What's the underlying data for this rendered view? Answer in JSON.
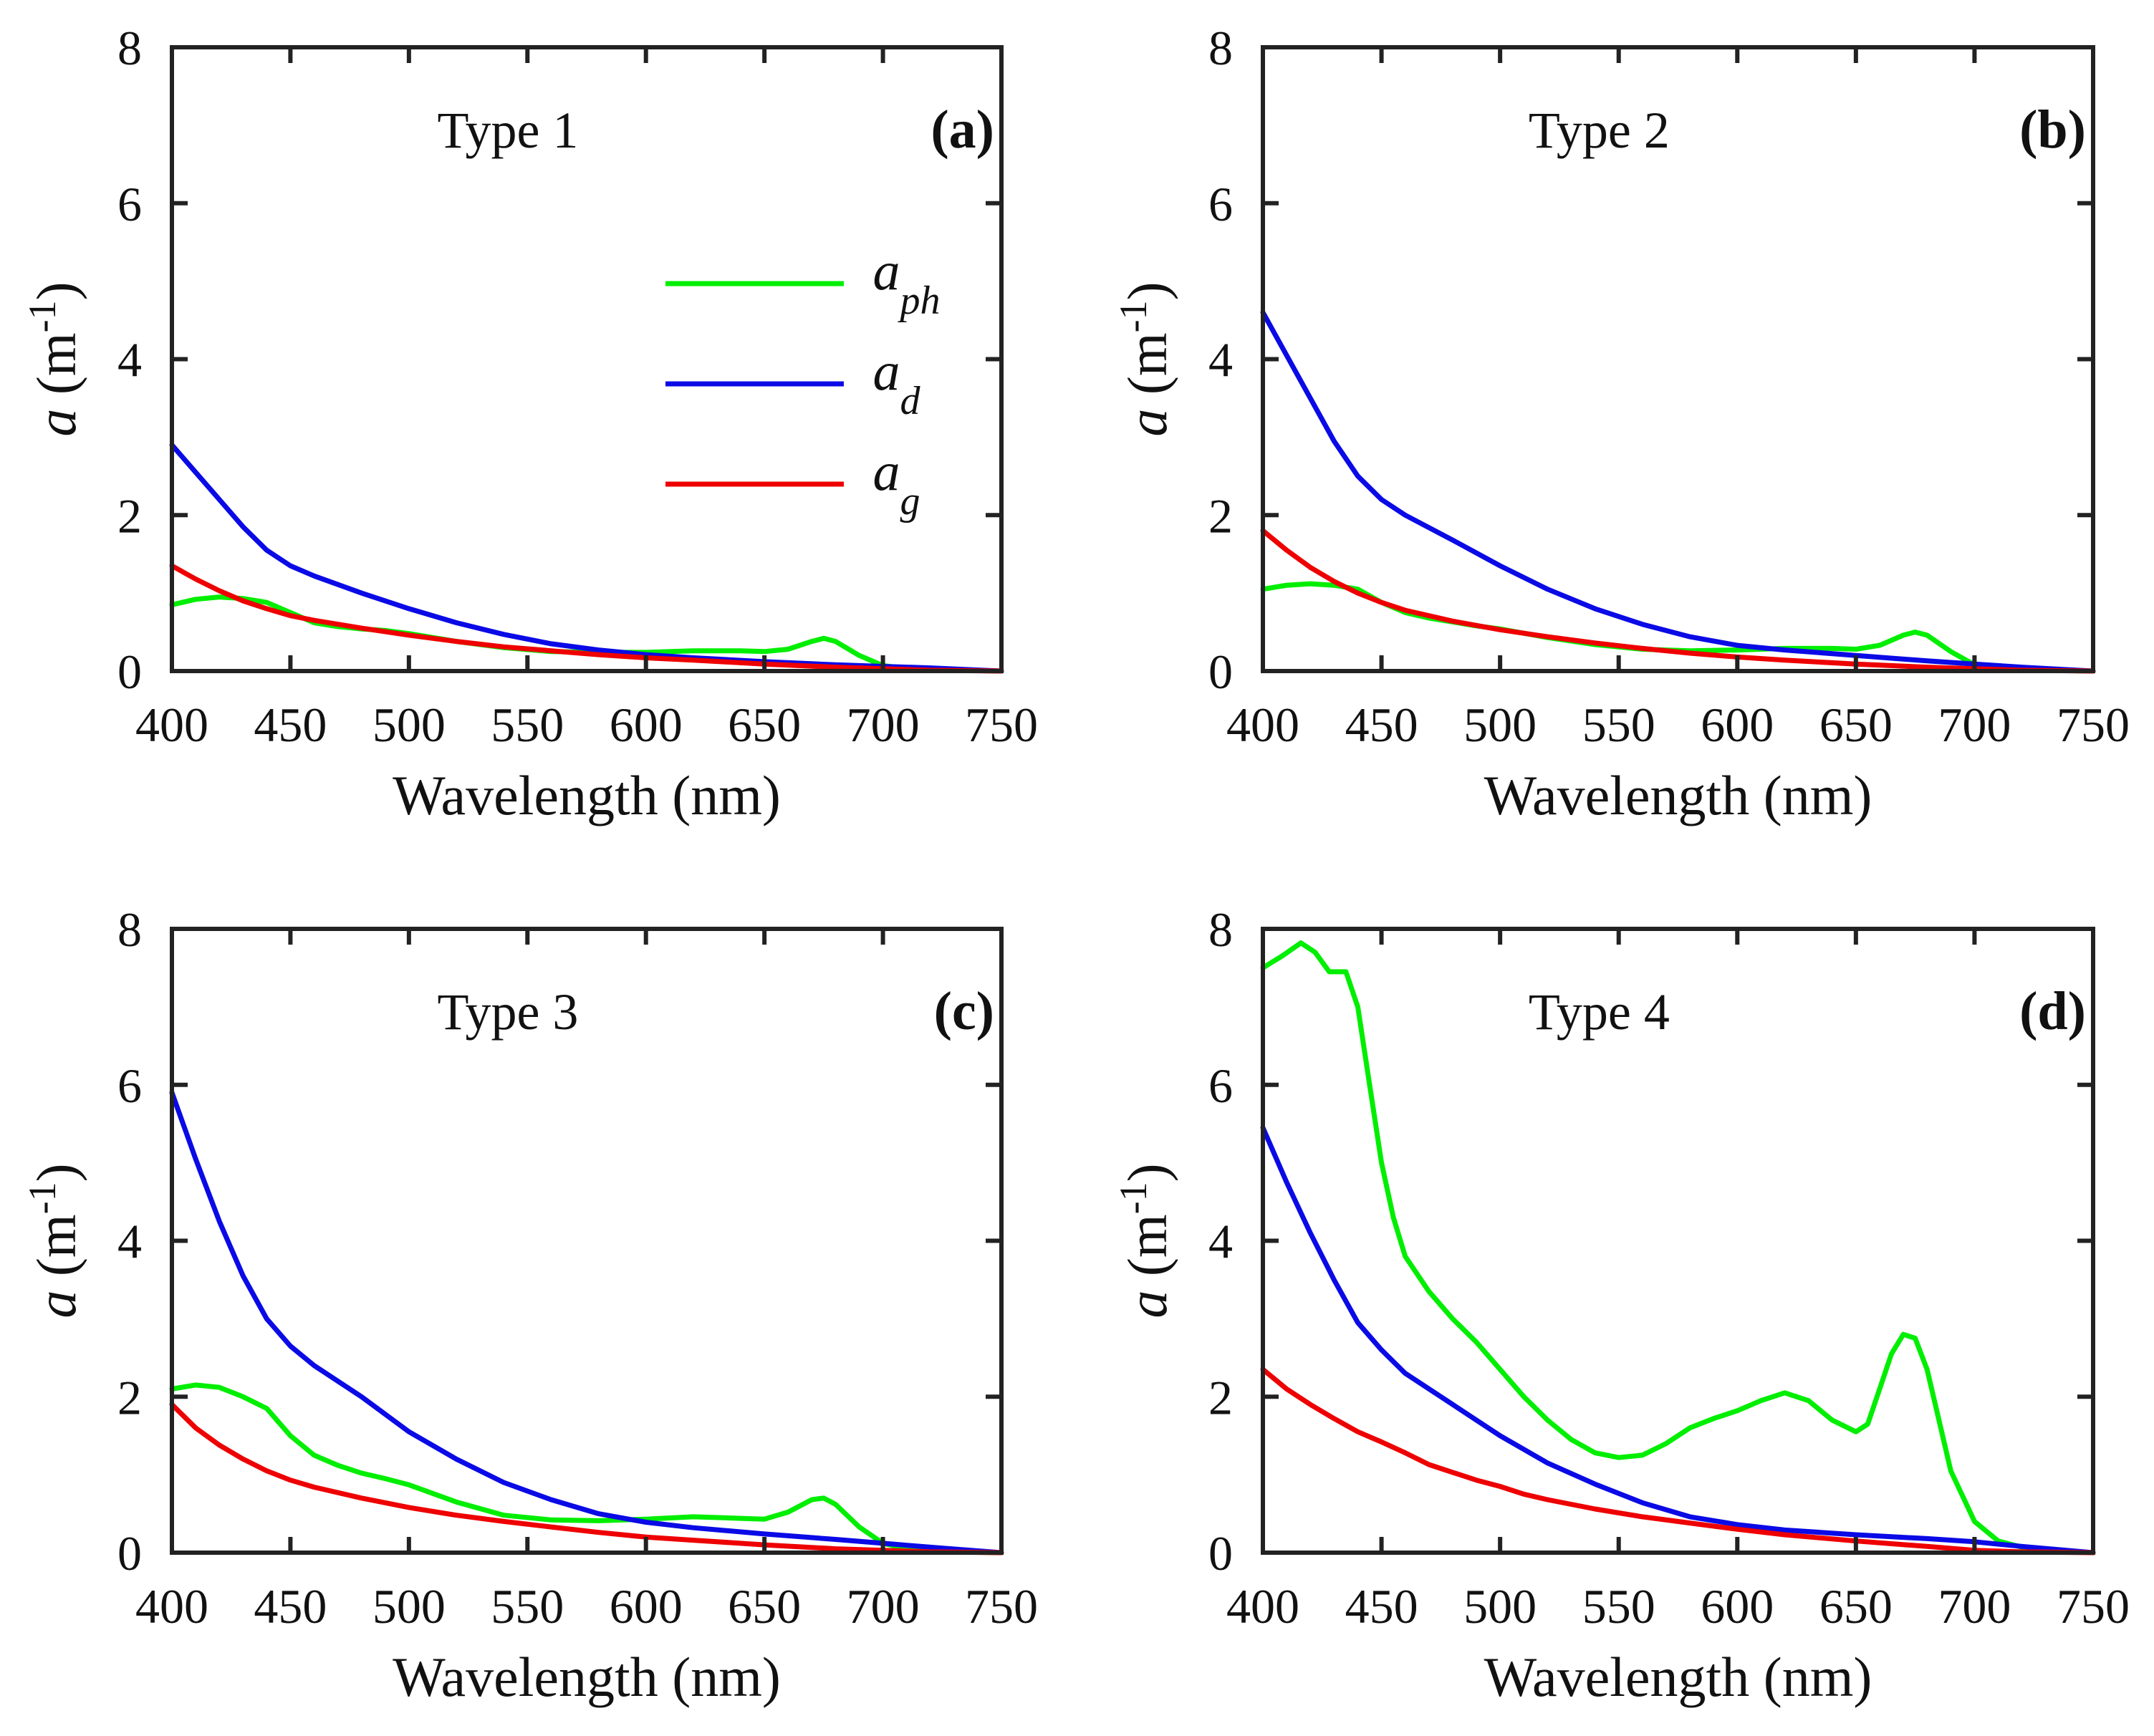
{
  "colors": {
    "aph": "#00ee00",
    "ad": "#0a0ae6",
    "ag": "#ee0000"
  },
  "chart_data": [
    {
      "type": "line",
      "panel": "(a)",
      "title": "Type 1",
      "xlabel": "Wavelength (nm)",
      "ylabel": "a (m-1)",
      "xlim": [
        400,
        750
      ],
      "ylim": [
        0,
        8
      ],
      "xticks": [
        "400",
        "450",
        "500",
        "550",
        "600",
        "650",
        "700",
        "750"
      ],
      "yticks": [
        "0",
        "2",
        "4",
        "6",
        "8"
      ],
      "legend": [
        {
          "key": "aph",
          "base": "a",
          "sub": "ph"
        },
        {
          "key": "ad",
          "base": "a",
          "sub": "d"
        },
        {
          "key": "ag",
          "base": "a",
          "sub": "g"
        }
      ],
      "series": [
        {
          "name": "a_ph",
          "key": "aph",
          "x": [
            400,
            410,
            420,
            430,
            440,
            450,
            460,
            470,
            480,
            490,
            500,
            520,
            540,
            560,
            580,
            600,
            620,
            640,
            650,
            660,
            670,
            675,
            680,
            690,
            700,
            710,
            730,
            750
          ],
          "y": [
            0.85,
            0.92,
            0.95,
            0.93,
            0.88,
            0.75,
            0.62,
            0.57,
            0.54,
            0.52,
            0.48,
            0.38,
            0.3,
            0.25,
            0.24,
            0.24,
            0.26,
            0.26,
            0.25,
            0.28,
            0.38,
            0.42,
            0.38,
            0.2,
            0.07,
            0.03,
            0.01,
            0.0
          ]
        },
        {
          "name": "a_d",
          "key": "ad",
          "x": [
            400,
            410,
            420,
            430,
            440,
            450,
            460,
            480,
            500,
            520,
            540,
            560,
            580,
            600,
            620,
            650,
            680,
            700,
            720,
            750
          ],
          "y": [
            2.9,
            2.55,
            2.2,
            1.85,
            1.55,
            1.35,
            1.22,
            1.0,
            0.8,
            0.62,
            0.47,
            0.35,
            0.27,
            0.21,
            0.17,
            0.12,
            0.08,
            0.06,
            0.04,
            0.0
          ]
        },
        {
          "name": "a_g",
          "key": "ag",
          "x": [
            400,
            410,
            420,
            430,
            440,
            450,
            460,
            480,
            500,
            520,
            540,
            560,
            580,
            600,
            620,
            650,
            680,
            700,
            720,
            750
          ],
          "y": [
            1.35,
            1.18,
            1.03,
            0.9,
            0.8,
            0.71,
            0.65,
            0.55,
            0.46,
            0.38,
            0.31,
            0.26,
            0.21,
            0.17,
            0.14,
            0.09,
            0.05,
            0.03,
            0.01,
            0.0
          ]
        }
      ]
    },
    {
      "type": "line",
      "panel": "(b)",
      "title": "Type 2",
      "xlabel": "Wavelength (nm)",
      "ylabel": "a (m-1)",
      "xlim": [
        400,
        750
      ],
      "ylim": [
        0,
        8
      ],
      "xticks": [
        "400",
        "450",
        "500",
        "550",
        "600",
        "650",
        "700",
        "750"
      ],
      "yticks": [
        "0",
        "2",
        "4",
        "6",
        "8"
      ],
      "series": [
        {
          "name": "a_ph",
          "key": "aph",
          "x": [
            400,
            410,
            420,
            430,
            440,
            450,
            460,
            470,
            480,
            490,
            500,
            520,
            540,
            560,
            580,
            600,
            620,
            640,
            650,
            660,
            670,
            675,
            680,
            690,
            700,
            710,
            730,
            750
          ],
          "y": [
            1.05,
            1.1,
            1.12,
            1.1,
            1.05,
            0.88,
            0.75,
            0.68,
            0.63,
            0.58,
            0.54,
            0.43,
            0.34,
            0.28,
            0.26,
            0.27,
            0.29,
            0.29,
            0.28,
            0.33,
            0.46,
            0.5,
            0.46,
            0.25,
            0.08,
            0.03,
            0.01,
            0.0
          ]
        },
        {
          "name": "a_d",
          "key": "ad",
          "x": [
            400,
            410,
            420,
            430,
            440,
            450,
            460,
            480,
            500,
            520,
            540,
            560,
            580,
            600,
            620,
            650,
            680,
            700,
            720,
            750
          ],
          "y": [
            4.6,
            4.05,
            3.5,
            2.95,
            2.5,
            2.2,
            2.0,
            1.68,
            1.35,
            1.05,
            0.8,
            0.6,
            0.44,
            0.33,
            0.27,
            0.2,
            0.13,
            0.09,
            0.05,
            0.0
          ]
        },
        {
          "name": "a_g",
          "key": "ag",
          "x": [
            400,
            410,
            420,
            430,
            440,
            450,
            460,
            480,
            500,
            520,
            540,
            560,
            580,
            600,
            620,
            650,
            680,
            700,
            720,
            750
          ],
          "y": [
            1.8,
            1.55,
            1.33,
            1.15,
            1.0,
            0.88,
            0.78,
            0.64,
            0.53,
            0.44,
            0.36,
            0.29,
            0.23,
            0.18,
            0.14,
            0.09,
            0.05,
            0.03,
            0.01,
            0.0
          ]
        }
      ]
    },
    {
      "type": "line",
      "panel": "(c)",
      "title": "Type 3",
      "xlabel": "Wavelength (nm)",
      "ylabel": "a (m-1)",
      "xlim": [
        400,
        750
      ],
      "ylim": [
        0,
        8
      ],
      "xticks": [
        "400",
        "450",
        "500",
        "550",
        "600",
        "650",
        "700",
        "750"
      ],
      "yticks": [
        "0",
        "2",
        "4",
        "6",
        "8"
      ],
      "series": [
        {
          "name": "a_ph",
          "key": "aph",
          "x": [
            400,
            410,
            420,
            430,
            440,
            450,
            460,
            470,
            480,
            490,
            500,
            520,
            540,
            560,
            580,
            600,
            620,
            640,
            650,
            660,
            670,
            675,
            680,
            690,
            700,
            710,
            730,
            750
          ],
          "y": [
            2.1,
            2.15,
            2.12,
            2.0,
            1.85,
            1.5,
            1.25,
            1.12,
            1.02,
            0.95,
            0.87,
            0.65,
            0.48,
            0.42,
            0.41,
            0.43,
            0.46,
            0.44,
            0.43,
            0.52,
            0.68,
            0.7,
            0.62,
            0.33,
            0.12,
            0.05,
            0.01,
            0.0
          ]
        },
        {
          "name": "a_d",
          "key": "ad",
          "x": [
            400,
            410,
            420,
            430,
            440,
            450,
            460,
            480,
            500,
            520,
            540,
            560,
            580,
            600,
            620,
            650,
            680,
            700,
            720,
            750
          ],
          "y": [
            5.9,
            5.05,
            4.25,
            3.55,
            3.0,
            2.65,
            2.4,
            2.0,
            1.55,
            1.2,
            0.9,
            0.68,
            0.5,
            0.39,
            0.32,
            0.24,
            0.17,
            0.12,
            0.07,
            0.0
          ]
        },
        {
          "name": "a_g",
          "key": "ag",
          "x": [
            400,
            410,
            420,
            430,
            440,
            450,
            460,
            480,
            500,
            520,
            540,
            560,
            580,
            600,
            620,
            650,
            680,
            700,
            720,
            750
          ],
          "y": [
            1.9,
            1.6,
            1.38,
            1.2,
            1.05,
            0.93,
            0.84,
            0.7,
            0.58,
            0.48,
            0.4,
            0.33,
            0.26,
            0.2,
            0.16,
            0.1,
            0.05,
            0.03,
            0.01,
            0.0
          ]
        }
      ]
    },
    {
      "type": "line",
      "panel": "(d)",
      "title": "Type 4",
      "xlabel": "Wavelength (nm)",
      "ylabel": "a (m-1)",
      "xlim": [
        400,
        750
      ],
      "ylim": [
        0,
        8
      ],
      "xticks": [
        "400",
        "450",
        "500",
        "550",
        "600",
        "650",
        "700",
        "750"
      ],
      "yticks": [
        "0",
        "2",
        "4",
        "6",
        "8"
      ],
      "series": [
        {
          "name": "a_ph",
          "key": "aph",
          "x": [
            400,
            408,
            416,
            422,
            428,
            435,
            440,
            445,
            450,
            455,
            460,
            470,
            480,
            490,
            500,
            510,
            520,
            530,
            540,
            550,
            560,
            570,
            580,
            590,
            600,
            610,
            620,
            630,
            640,
            650,
            655,
            660,
            665,
            670,
            675,
            680,
            685,
            690,
            700,
            710,
            720,
            730,
            740,
            750
          ],
          "y": [
            7.5,
            7.65,
            7.82,
            7.7,
            7.45,
            7.45,
            7.0,
            6.0,
            5.0,
            4.3,
            3.8,
            3.35,
            3.0,
            2.7,
            2.35,
            2.0,
            1.7,
            1.45,
            1.28,
            1.22,
            1.25,
            1.4,
            1.6,
            1.72,
            1.82,
            1.95,
            2.05,
            1.95,
            1.7,
            1.55,
            1.65,
            2.1,
            2.55,
            2.8,
            2.75,
            2.35,
            1.7,
            1.05,
            0.4,
            0.15,
            0.07,
            0.04,
            0.02,
            0.0
          ]
        },
        {
          "name": "a_d",
          "key": "ad",
          "x": [
            400,
            410,
            420,
            430,
            440,
            450,
            460,
            480,
            500,
            520,
            540,
            560,
            580,
            600,
            620,
            650,
            680,
            700,
            720,
            750
          ],
          "y": [
            5.45,
            4.75,
            4.1,
            3.5,
            2.95,
            2.6,
            2.3,
            1.9,
            1.5,
            1.15,
            0.88,
            0.64,
            0.46,
            0.36,
            0.29,
            0.23,
            0.18,
            0.14,
            0.08,
            0.0
          ]
        },
        {
          "name": "a_g",
          "key": "ag",
          "x": [
            400,
            410,
            420,
            430,
            440,
            450,
            460,
            470,
            480,
            490,
            500,
            510,
            520,
            540,
            560,
            580,
            600,
            620,
            650,
            680,
            700,
            720,
            750
          ],
          "y": [
            2.35,
            2.1,
            1.9,
            1.72,
            1.55,
            1.42,
            1.28,
            1.13,
            1.03,
            0.93,
            0.85,
            0.75,
            0.68,
            0.56,
            0.46,
            0.38,
            0.3,
            0.23,
            0.15,
            0.08,
            0.03,
            0.01,
            0.0
          ]
        }
      ]
    }
  ]
}
